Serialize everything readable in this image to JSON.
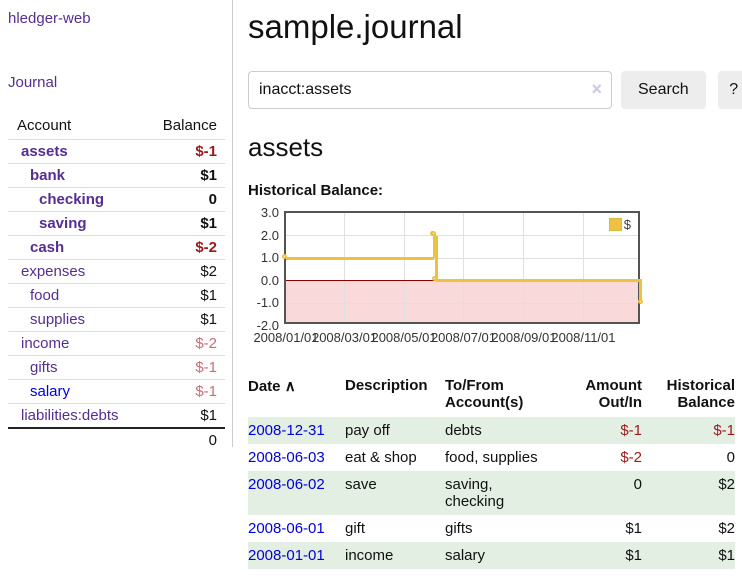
{
  "colors": {
    "accent_purple": "#552e91",
    "link_blue": "#0000dd",
    "negative_strong": "#9d1919",
    "negative_soft": "#c86f6f",
    "row_green": "#e2efe2",
    "chart_line_gold": "#edc240",
    "chart_negative_fill": "#f9d9d9",
    "chart_zero_line": "#8b0000"
  },
  "sidebar": {
    "brand": "hledger-web",
    "journal_link": "Journal",
    "table": {
      "headers": {
        "account": "Account",
        "balance": "Balance"
      },
      "rows": [
        {
          "name": "assets",
          "depth": 0,
          "bold": true,
          "balance": "$-1",
          "balance_style": "neg-strong"
        },
        {
          "name": "bank",
          "depth": 1,
          "bold": true,
          "balance": "$1",
          "balance_style": "pos"
        },
        {
          "name": "checking",
          "depth": 2,
          "bold": true,
          "balance": "0",
          "balance_style": "pos"
        },
        {
          "name": "saving",
          "depth": 2,
          "bold": true,
          "balance": "$1",
          "balance_style": "pos"
        },
        {
          "name": "cash",
          "depth": 1,
          "bold": true,
          "balance": "$-2",
          "balance_style": "neg-strong"
        },
        {
          "name": "expenses",
          "depth": 0,
          "bold": false,
          "balance": "$2",
          "balance_style": "pos"
        },
        {
          "name": "food",
          "depth": 1,
          "bold": false,
          "balance": "$1",
          "balance_style": "pos"
        },
        {
          "name": "supplies",
          "depth": 1,
          "bold": false,
          "balance": "$1",
          "balance_style": "pos"
        },
        {
          "name": "income",
          "depth": 0,
          "bold": false,
          "balance": "$-2",
          "balance_style": "neg-soft"
        },
        {
          "name": "gifts",
          "depth": 1,
          "bold": false,
          "balance": "$-1",
          "balance_style": "neg-soft"
        },
        {
          "name": "salary",
          "depth": 1,
          "bold": false,
          "balance": "$-1",
          "balance_style": "neg-soft",
          "link_style": "blue"
        },
        {
          "name": "liabilities:debts",
          "depth": 0,
          "bold": false,
          "balance": "$1",
          "balance_style": "pos"
        }
      ],
      "total": "0"
    }
  },
  "header": {
    "title": "sample.journal"
  },
  "search": {
    "value": "inacct:assets",
    "clear_icon": "×",
    "button": "Search",
    "help_button": "?"
  },
  "account_page": {
    "heading": "assets",
    "chart_label": "Historical Balance:"
  },
  "chart_data": {
    "type": "line",
    "step": true,
    "title": "Historical Balance",
    "series": [
      {
        "name": "$",
        "color": "#edc240",
        "points": [
          [
            "2008-01-01",
            1
          ],
          [
            "2008-06-01",
            2
          ],
          [
            "2008-06-02",
            2
          ],
          [
            "2008-06-03",
            0
          ],
          [
            "2008-12-31",
            -1
          ]
        ]
      }
    ],
    "ylim": [
      -2,
      3
    ],
    "yticks": [
      3.0,
      2.0,
      1.0,
      0.0,
      -1.0,
      -2.0
    ],
    "ytick_labels": [
      "3.0",
      "2.0",
      "1.0",
      "0.0",
      "-1.0",
      "-2.0"
    ],
    "xlim": [
      "2008-01-01",
      "2008-12-31"
    ],
    "xticks": [
      "2008-01-01",
      "2008-03-01",
      "2008-05-01",
      "2008-07-01",
      "2008-09-01",
      "2008-11-01"
    ],
    "xtick_labels": [
      "2008/01/01",
      "2008/03/01",
      "2008/05/01",
      "2008/07/01",
      "2008/09/01",
      "2008/11/01"
    ],
    "grid": true,
    "legend_position": "top-right",
    "negative_region_shaded": true
  },
  "register": {
    "sort_icon": "∧",
    "columns": [
      {
        "label": "Date",
        "sorted": true
      },
      {
        "label": "Description"
      },
      {
        "label": "To/From Account(s)"
      },
      {
        "label": "Amount Out/In",
        "align": "right"
      },
      {
        "label": "Historical Balance",
        "align": "right"
      }
    ],
    "rows": [
      {
        "date": "2008-12-31",
        "description": "pay off",
        "accounts": "debts",
        "amount": "$-1",
        "amount_neg": true,
        "balance": "$-1",
        "balance_neg": true
      },
      {
        "date": "2008-06-03",
        "description": "eat & shop",
        "accounts": "food, supplies",
        "amount": "$-2",
        "amount_neg": true,
        "balance": "0",
        "balance_neg": false
      },
      {
        "date": "2008-06-02",
        "description": "save",
        "accounts": "saving, checking",
        "amount": "0",
        "amount_neg": false,
        "balance": "$2",
        "balance_neg": false
      },
      {
        "date": "2008-06-01",
        "description": "gift",
        "accounts": "gifts",
        "amount": "$1",
        "amount_neg": false,
        "balance": "$2",
        "balance_neg": false
      },
      {
        "date": "2008-01-01",
        "description": "income",
        "accounts": "salary",
        "amount": "$1",
        "amount_neg": false,
        "balance": "$1",
        "balance_neg": false
      }
    ]
  }
}
